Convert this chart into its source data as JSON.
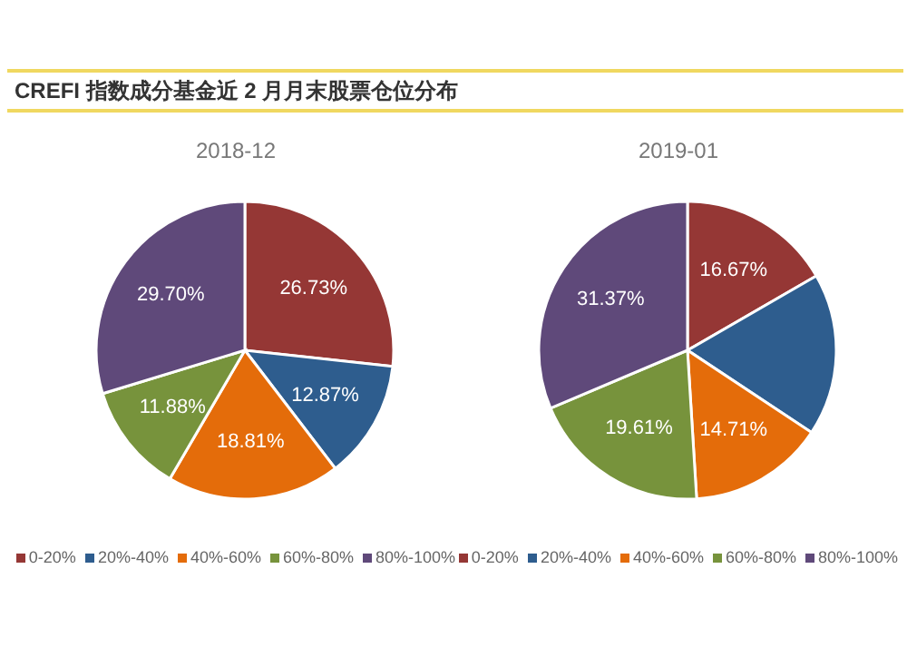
{
  "chart_data": [
    {
      "type": "pie",
      "title": "CREFI 指数成分基金近 2 月月末股票仓位分布",
      "subtitle": "2018-12",
      "categories": [
        "0-20%",
        "20%-40%",
        "40%-60%",
        "60%-80%",
        "80%-100%"
      ],
      "values": [
        26.73,
        12.87,
        18.81,
        11.88,
        29.7
      ],
      "colors": [
        "#953735",
        "#2e5d8e",
        "#e46c0a",
        "#77933c",
        "#5f497a"
      ],
      "value_labels": [
        "26.73%",
        "12.87%",
        "18.81%",
        "11.88%",
        "29.70%"
      ],
      "legend": "bottom"
    },
    {
      "type": "pie",
      "subtitle": "2019-01",
      "categories": [
        "0-20%",
        "20%-40%",
        "40%-60%",
        "60%-80%",
        "80%-100%"
      ],
      "values": [
        16.67,
        17.64,
        14.71,
        19.61,
        31.37
      ],
      "colors": [
        "#953735",
        "#2e5d8e",
        "#e46c0a",
        "#77933c",
        "#5f497a"
      ],
      "value_labels": [
        "16.67%",
        null,
        "14.71%",
        "19.61%",
        "31.37%"
      ],
      "legend": "bottom"
    }
  ]
}
